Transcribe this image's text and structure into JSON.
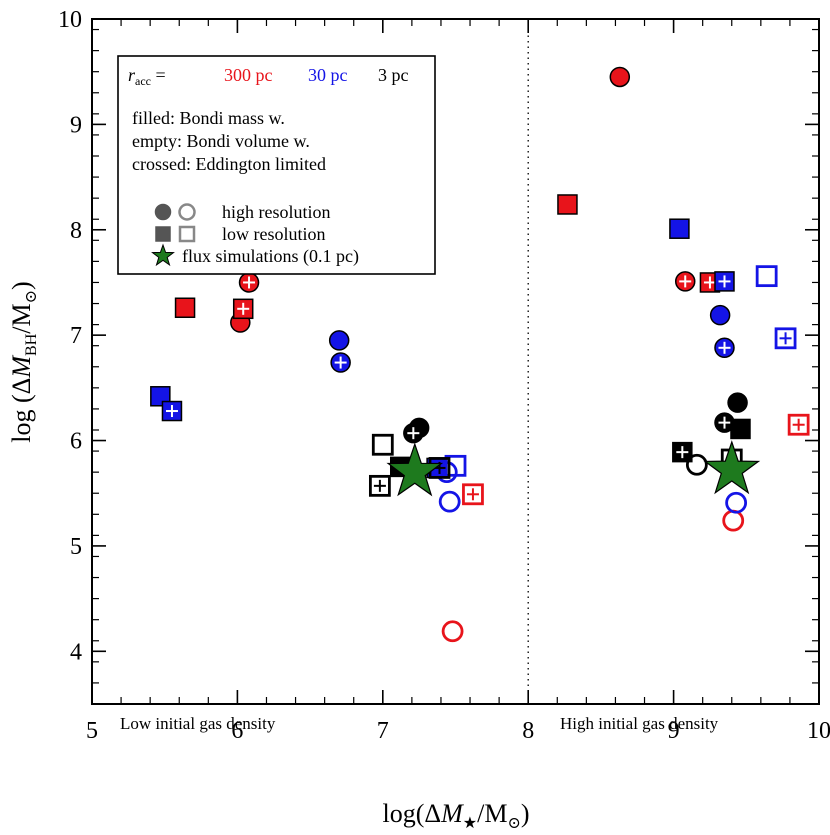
{
  "chart_data": {
    "type": "scatter",
    "xlabel_parts": [
      "log(Δ",
      "M",
      "★",
      "/M",
      "⊙",
      ")"
    ],
    "ylabel_parts": [
      "log (Δ",
      "M",
      "BH",
      "/M",
      "⊙",
      ")"
    ],
    "xlim": [
      5,
      10
    ],
    "ylim": [
      3.5,
      10
    ],
    "xticks": [
      "5",
      "6",
      "7",
      "8",
      "9",
      "10"
    ],
    "yticks": [
      "4",
      "5",
      "6",
      "7",
      "8",
      "9",
      "10"
    ],
    "divider_x": 8,
    "region_labels": {
      "left": "Low initial gas density",
      "right": "High initial gas density"
    },
    "colors": {
      "300": "#e8141b",
      "30": "#1414e6",
      "3": "#000000",
      "flux": "#1e7a1e",
      "legend_gray": "#888888"
    },
    "legend": {
      "racc_symbol": "r",
      "racc_sub": "acc",
      "racc_eq": " =",
      "racc_values": [
        "300 pc",
        "30 pc",
        "3 pc"
      ],
      "line1": "filled: Bondi mass w.",
      "line2": "empty: Bondi volume w.",
      "line3": "crossed: Eddington limited",
      "high_res": "high resolution",
      "low_res": "low resolution",
      "flux": "flux simulations (0.1 pc)"
    },
    "points": [
      {
        "x": 6.08,
        "y": 7.5,
        "color": "300",
        "shape": "circle",
        "fill": "filled",
        "cross": true
      },
      {
        "x": 6.02,
        "y": 7.12,
        "color": "300",
        "shape": "circle",
        "fill": "filled",
        "cross": false
      },
      {
        "x": 5.64,
        "y": 7.26,
        "color": "300",
        "shape": "square",
        "fill": "filled",
        "cross": false
      },
      {
        "x": 6.04,
        "y": 7.25,
        "color": "300",
        "shape": "square",
        "fill": "filled",
        "cross": true
      },
      {
        "x": 7.48,
        "y": 4.19,
        "color": "300",
        "shape": "circle",
        "fill": "empty",
        "cross": false
      },
      {
        "x": 7.62,
        "y": 5.49,
        "color": "300",
        "shape": "square",
        "fill": "empty",
        "cross": true
      },
      {
        "x": 6.7,
        "y": 6.95,
        "color": "30",
        "shape": "circle",
        "fill": "filled",
        "cross": false
      },
      {
        "x": 6.71,
        "y": 6.74,
        "color": "30",
        "shape": "circle",
        "fill": "filled",
        "cross": true
      },
      {
        "x": 5.47,
        "y": 6.42,
        "color": "30",
        "shape": "square",
        "fill": "filled",
        "cross": false
      },
      {
        "x": 5.55,
        "y": 6.28,
        "color": "30",
        "shape": "square",
        "fill": "filled",
        "cross": true
      },
      {
        "x": 7.37,
        "y": 5.74,
        "color": "30",
        "shape": "square",
        "fill": "filled",
        "cross": false
      },
      {
        "x": 7.46,
        "y": 5.42,
        "color": "30",
        "shape": "circle",
        "fill": "empty",
        "cross": false
      },
      {
        "x": 7.44,
        "y": 5.7,
        "color": "30",
        "shape": "circle",
        "fill": "empty",
        "cross": false
      },
      {
        "x": 7.5,
        "y": 5.76,
        "color": "30",
        "shape": "square",
        "fill": "empty",
        "cross": false
      },
      {
        "x": 7.25,
        "y": 6.12,
        "color": "3",
        "shape": "circle",
        "fill": "filled",
        "cross": false
      },
      {
        "x": 7.21,
        "y": 6.07,
        "color": "3",
        "shape": "circle",
        "fill": "filled",
        "cross": true
      },
      {
        "x": 7.12,
        "y": 5.75,
        "color": "3",
        "shape": "square",
        "fill": "filled",
        "cross": false
      },
      {
        "x": 7.0,
        "y": 5.96,
        "color": "3",
        "shape": "square",
        "fill": "empty",
        "cross": false
      },
      {
        "x": 6.98,
        "y": 5.57,
        "color": "3",
        "shape": "square",
        "fill": "empty",
        "cross": true
      },
      {
        "x": 7.39,
        "y": 5.74,
        "color": "3",
        "shape": "square",
        "fill": "empty",
        "cross": true
      },
      {
        "x": 8.63,
        "y": 9.45,
        "color": "300",
        "shape": "circle",
        "fill": "filled",
        "cross": false
      },
      {
        "x": 9.08,
        "y": 7.51,
        "color": "300",
        "shape": "circle",
        "fill": "filled",
        "cross": true
      },
      {
        "x": 8.27,
        "y": 8.24,
        "color": "300",
        "shape": "square",
        "fill": "filled",
        "cross": false
      },
      {
        "x": 9.25,
        "y": 7.5,
        "color": "300",
        "shape": "square",
        "fill": "filled",
        "cross": true
      },
      {
        "x": 9.41,
        "y": 5.24,
        "color": "300",
        "shape": "circle",
        "fill": "empty",
        "cross": false
      },
      {
        "x": 9.86,
        "y": 6.15,
        "color": "300",
        "shape": "square",
        "fill": "empty",
        "cross": true
      },
      {
        "x": 9.32,
        "y": 7.19,
        "color": "30",
        "shape": "circle",
        "fill": "filled",
        "cross": false
      },
      {
        "x": 9.35,
        "y": 6.88,
        "color": "30",
        "shape": "circle",
        "fill": "filled",
        "cross": true
      },
      {
        "x": 9.04,
        "y": 8.01,
        "color": "30",
        "shape": "square",
        "fill": "filled",
        "cross": false
      },
      {
        "x": 9.35,
        "y": 7.51,
        "color": "30",
        "shape": "square",
        "fill": "filled",
        "cross": true
      },
      {
        "x": 9.43,
        "y": 5.41,
        "color": "30",
        "shape": "circle",
        "fill": "empty",
        "cross": false
      },
      {
        "x": 9.64,
        "y": 7.56,
        "color": "30",
        "shape": "square",
        "fill": "empty",
        "cross": false
      },
      {
        "x": 9.77,
        "y": 6.97,
        "color": "30",
        "shape": "square",
        "fill": "empty",
        "cross": true
      },
      {
        "x": 9.44,
        "y": 6.36,
        "color": "3",
        "shape": "circle",
        "fill": "filled",
        "cross": false
      },
      {
        "x": 9.35,
        "y": 6.17,
        "color": "3",
        "shape": "circle",
        "fill": "filled",
        "cross": true
      },
      {
        "x": 9.46,
        "y": 6.11,
        "color": "3",
        "shape": "square",
        "fill": "filled",
        "cross": false
      },
      {
        "x": 9.06,
        "y": 5.89,
        "color": "3",
        "shape": "square",
        "fill": "filled",
        "cross": true
      },
      {
        "x": 9.16,
        "y": 5.77,
        "color": "3",
        "shape": "circle",
        "fill": "empty",
        "cross": false
      },
      {
        "x": 9.4,
        "y": 5.82,
        "color": "3",
        "shape": "square",
        "fill": "empty",
        "cross": true
      }
    ],
    "stars": [
      {
        "x": 7.22,
        "y": 5.7
      },
      {
        "x": 9.4,
        "y": 5.72
      }
    ]
  }
}
